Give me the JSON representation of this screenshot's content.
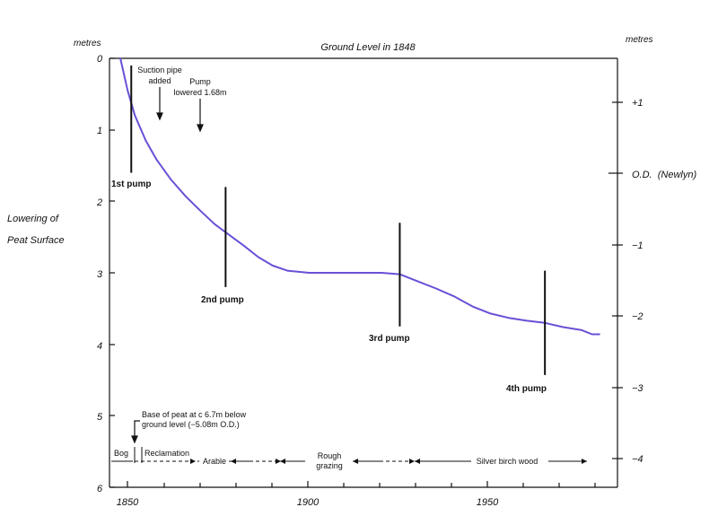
{
  "chart_data": {
    "type": "line",
    "title": "Ground Level in 1848",
    "left_axis": {
      "label": "metres",
      "caption": [
        "Lowering of",
        "Peat Surface"
      ],
      "range": [
        0,
        6
      ],
      "ticks": [
        "0",
        "1",
        "2",
        "3",
        "4",
        "5",
        "6"
      ]
    },
    "right_axis": {
      "label": "metres",
      "ticks": [
        {
          "od": 1,
          "label": "+1"
        },
        {
          "od": 0,
          "label": "O.D.  (Newlyn)"
        },
        {
          "od": -1,
          "label": "−1"
        },
        {
          "od": -2,
          "label": "−2"
        },
        {
          "od": -3,
          "label": "−3"
        },
        {
          "od": -4,
          "label": "−4"
        }
      ]
    },
    "x_axis": {
      "range": [
        1845,
        1985
      ],
      "ticks": [
        "1850",
        "1900",
        "1950"
      ]
    },
    "line_color": "#6a4fd6",
    "series": [
      {
        "points": [
          [
            1848,
            0.0
          ],
          [
            1850,
            0.45
          ],
          [
            1852,
            0.8
          ],
          [
            1855,
            1.15
          ],
          [
            1858,
            1.42
          ],
          [
            1862,
            1.7
          ],
          [
            1866,
            1.93
          ],
          [
            1870,
            2.13
          ],
          [
            1874,
            2.32
          ],
          [
            1878,
            2.47
          ],
          [
            1882,
            2.62
          ],
          [
            1886,
            2.78
          ],
          [
            1890,
            2.9
          ],
          [
            1894,
            2.97
          ],
          [
            1900,
            3.0
          ],
          [
            1910,
            3.0
          ],
          [
            1920,
            3.0
          ],
          [
            1925,
            3.02
          ],
          [
            1930,
            3.12
          ],
          [
            1935,
            3.22
          ],
          [
            1940,
            3.33
          ],
          [
            1945,
            3.47
          ],
          [
            1950,
            3.57
          ],
          [
            1955,
            3.63
          ],
          [
            1960,
            3.67
          ],
          [
            1965,
            3.7
          ],
          [
            1970,
            3.76
          ],
          [
            1975,
            3.8
          ],
          [
            1978,
            3.86
          ],
          [
            1980,
            3.86
          ]
        ]
      }
    ],
    "pump_markers": [
      {
        "label": "1st pump",
        "year": 1851,
        "top": 0.1,
        "bottom": 1.6
      },
      {
        "label": "2nd pump",
        "year": 1877,
        "top": 1.8,
        "bottom": 3.2
      },
      {
        "label": "3rd pump",
        "year": 1925,
        "top": 2.3,
        "bottom": 3.75
      },
      {
        "label": "4th pump",
        "year": 1965,
        "top": 2.97,
        "bottom": 4.43
      }
    ],
    "annotations": [
      {
        "lines": [
          "Suction pipe",
          "added"
        ],
        "year": 1860
      },
      {
        "lines": [
          "Pump",
          "lowered 1.68m"
        ],
        "year": 1872
      },
      {
        "lines": [
          "Base of peat at c 6.7m below",
          "ground level (−5.08m O.D.)"
        ],
        "year": 1853
      }
    ],
    "land_use": [
      "Bog",
      "Reclamation",
      "Arable",
      "Rough",
      "grazing",
      "Silver birch wood"
    ]
  }
}
